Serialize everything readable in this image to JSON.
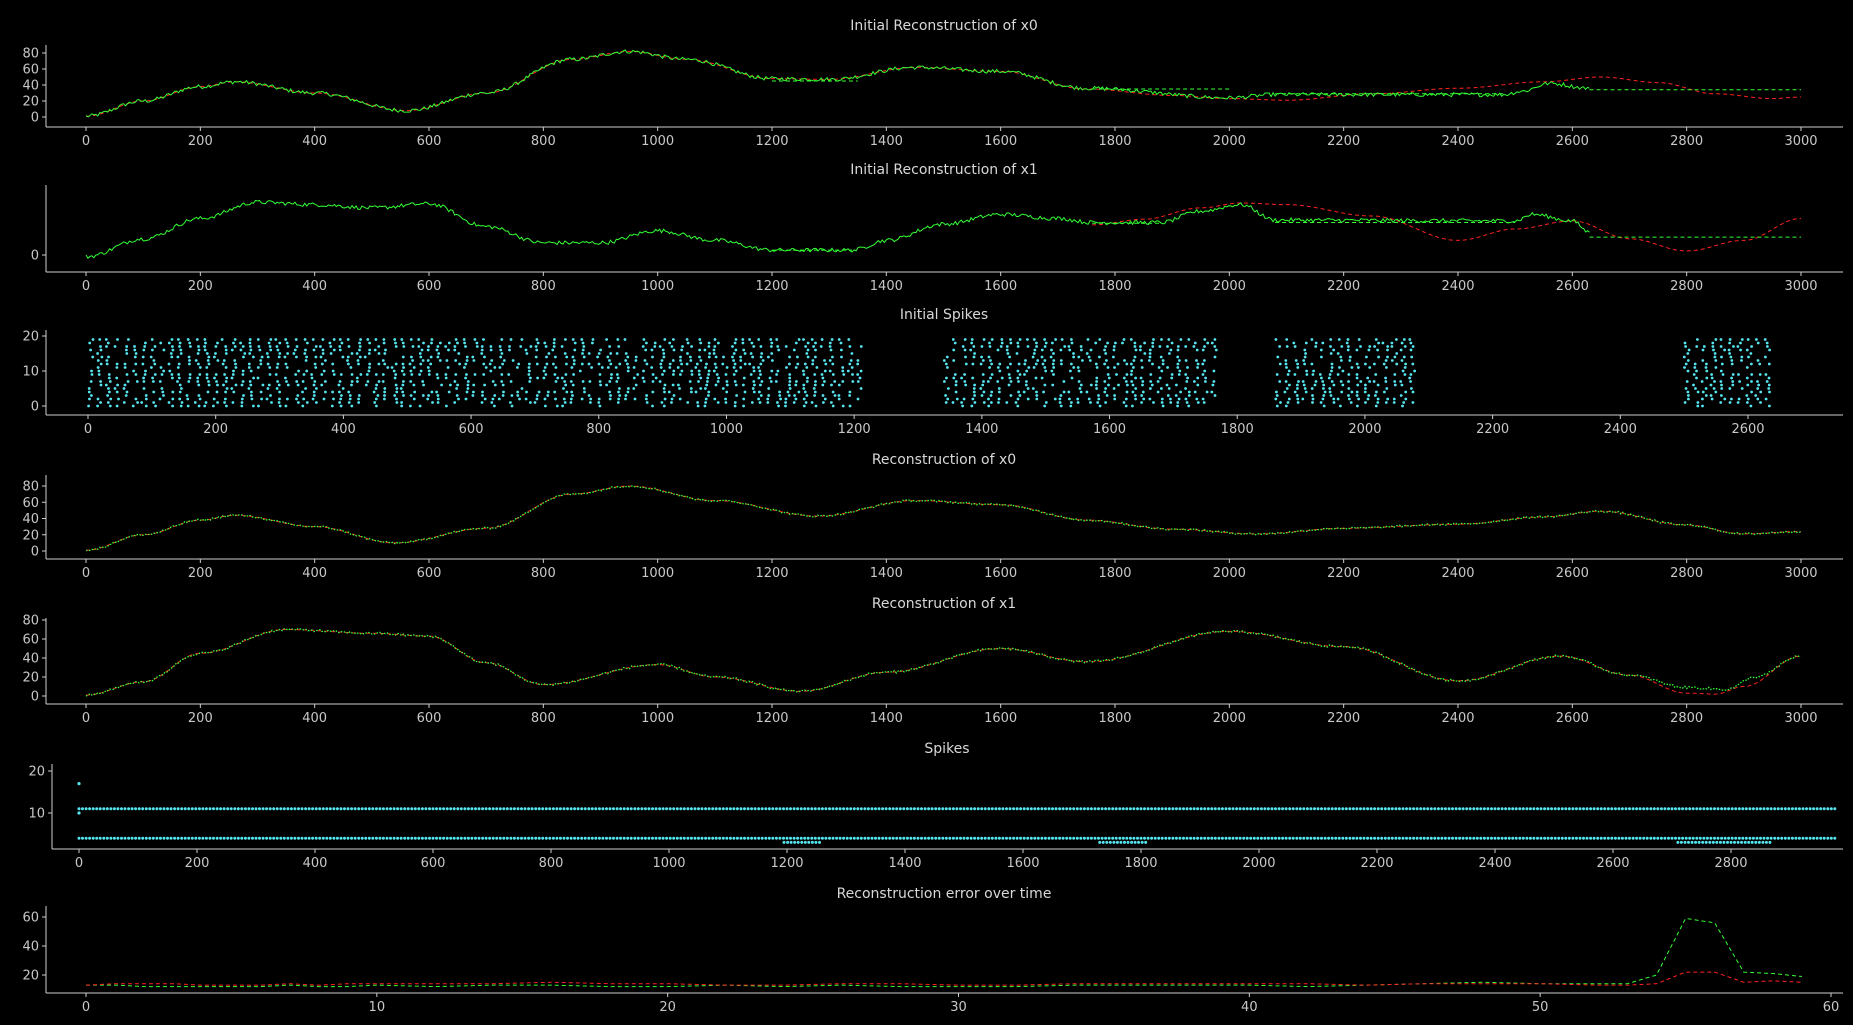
{
  "colors": {
    "background": "#000000",
    "reconstruction": "#33ff33",
    "original": "#ff2222",
    "spikes": "#55e6f0",
    "axis": "#cfcfcf",
    "text": "#d8d8d8"
  },
  "chart_data": [
    {
      "id": "p1",
      "type": "line",
      "title": "Initial Reconstruction of x0",
      "xlim": [
        0,
        3000
      ],
      "ylim": [
        -10,
        90
      ],
      "xticks": [
        0,
        200,
        400,
        600,
        800,
        1000,
        1200,
        1400,
        1600,
        1800,
        2000,
        2200,
        2400,
        2600,
        2800,
        3000
      ],
      "yticks": [
        0,
        20,
        40,
        60,
        80
      ],
      "series": [
        {
          "role": "original",
          "style": "dashed",
          "x": [
            0,
            100,
            200,
            260,
            400,
            560,
            700,
            850,
            950,
            1050,
            1200,
            1300,
            1450,
            1600,
            1750,
            1900,
            2000,
            2100,
            2250,
            2400,
            2550,
            2650,
            2750,
            2850,
            2950,
            3000
          ],
          "y": [
            1,
            20,
            38,
            44,
            30,
            8,
            30,
            72,
            82,
            72,
            48,
            47,
            62,
            57,
            35,
            27,
            23,
            21,
            29,
            36,
            44,
            50,
            43,
            29,
            23,
            25
          ]
        },
        {
          "role": "reconstruction",
          "style": "noisy",
          "x": [
            0,
            100,
            200,
            260,
            400,
            560,
            700,
            850,
            950,
            1050,
            1200,
            1300,
            1450,
            1600,
            1750,
            2000,
            2080,
            2480,
            2510,
            2560,
            2630
          ],
          "y": [
            1,
            20,
            38,
            44,
            30,
            8,
            30,
            72,
            82,
            72,
            48,
            47,
            62,
            57,
            36,
            24,
            28,
            28,
            32,
            42,
            36
          ]
        },
        {
          "role": "reconstruction",
          "style": "dashed",
          "x": [
            1200,
            1350
          ],
          "y": [
            45,
            45
          ]
        },
        {
          "role": "reconstruction",
          "style": "dashed",
          "x": [
            1760,
            2000
          ],
          "y": [
            35,
            35
          ]
        },
        {
          "role": "reconstruction",
          "style": "dashed",
          "x": [
            2080,
            2480
          ],
          "y": [
            29,
            29
          ]
        },
        {
          "role": "reconstruction",
          "style": "dashed",
          "x": [
            2630,
            3000
          ],
          "y": [
            34,
            34
          ]
        }
      ]
    },
    {
      "id": "p2",
      "type": "line",
      "title": "Initial Reconstruction of x1",
      "xlim": [
        0,
        3000
      ],
      "ylim": [
        -15,
        95
      ],
      "xticks": [
        0,
        200,
        400,
        600,
        800,
        1000,
        1200,
        1400,
        1600,
        1800,
        2000,
        2200,
        2400,
        2600,
        2800,
        3000
      ],
      "yticks": [
        0
      ],
      "series": [
        {
          "role": "original",
          "style": "dashed",
          "x": [
            1760,
            1850,
            1950,
            2020,
            2100,
            2250,
            2400,
            2500,
            2600,
            2700,
            2800,
            2900,
            3000
          ],
          "y": [
            37,
            44,
            58,
            64,
            62,
            48,
            18,
            32,
            42,
            20,
            5,
            18,
            45
          ]
        },
        {
          "role": "reconstruction",
          "style": "noisy",
          "x": [
            0,
            100,
            200,
            300,
            400,
            500,
            600,
            700,
            800,
            900,
            1000,
            1100,
            1200,
            1340,
            1400,
            1500,
            1600,
            1700,
            1760,
            1880,
            1950,
            2020,
            2080,
            2500,
            2530,
            2600,
            2630
          ],
          "y": [
            -2,
            20,
            45,
            65,
            62,
            58,
            63,
            35,
            15,
            15,
            30,
            18,
            6,
            6,
            18,
            38,
            50,
            45,
            40,
            40,
            54,
            62,
            43,
            42,
            50,
            42,
            28
          ]
        },
        {
          "role": "reconstruction",
          "style": "dashed",
          "x": [
            1200,
            1340
          ],
          "y": [
            6,
            6
          ]
        },
        {
          "role": "reconstruction",
          "style": "dashed",
          "x": [
            1760,
            1880
          ],
          "y": [
            39,
            39
          ]
        },
        {
          "role": "reconstruction",
          "style": "dashed",
          "x": [
            2080,
            2500
          ],
          "y": [
            40,
            40
          ]
        },
        {
          "role": "reconstruction",
          "style": "dashed",
          "x": [
            2630,
            3000
          ],
          "y": [
            22,
            22
          ]
        }
      ]
    },
    {
      "id": "p3",
      "type": "scatter",
      "title": "Initial Spikes",
      "xlim": [
        -55,
        2700
      ],
      "ylim": [
        -5,
        22
      ],
      "xticks": [
        0,
        200,
        400,
        600,
        800,
        1000,
        1200,
        1400,
        1600,
        1800,
        2000,
        2200,
        2400,
        2600
      ],
      "yticks": [
        0,
        10,
        20
      ],
      "rows": [
        0,
        1,
        2,
        3,
        4,
        5,
        6,
        7,
        8,
        9,
        10,
        11,
        12,
        13,
        14,
        15,
        16,
        17,
        18,
        19
      ],
      "segments": [
        [
          0,
          1210
        ],
        [
          1340,
          1760
        ],
        [
          1860,
          2080
        ],
        [
          2500,
          2630
        ]
      ]
    },
    {
      "id": "p4",
      "type": "line",
      "title": "Reconstruction of x0",
      "xlim": [
        0,
        3000
      ],
      "ylim": [
        -10,
        90
      ],
      "xticks": [
        0,
        200,
        400,
        600,
        800,
        1000,
        1200,
        1400,
        1600,
        1800,
        2000,
        2200,
        2400,
        2600,
        2800,
        3000
      ],
      "yticks": [
        0,
        20,
        40,
        60,
        80
      ],
      "series": [
        {
          "role": "original",
          "style": "dashed",
          "x": [
            0,
            100,
            200,
            260,
            400,
            540,
            700,
            850,
            950,
            1100,
            1280,
            1450,
            1600,
            1750,
            1900,
            2050,
            2200,
            2400,
            2550,
            2650,
            2800,
            2900,
            3000
          ],
          "y": [
            1,
            20,
            38,
            44,
            30,
            10,
            28,
            70,
            80,
            62,
            43,
            62,
            57,
            38,
            27,
            21,
            28,
            33,
            42,
            49,
            32,
            21,
            24
          ]
        },
        {
          "role": "reconstruction",
          "style": "dotted",
          "x": [
            0,
            100,
            200,
            260,
            400,
            540,
            700,
            850,
            950,
            1100,
            1280,
            1450,
            1600,
            1750,
            1900,
            2050,
            2200,
            2400,
            2550,
            2650,
            2800,
            2900,
            3000
          ],
          "y": [
            1,
            20,
            38,
            44,
            30,
            10,
            28,
            70,
            80,
            62,
            43,
            62,
            57,
            38,
            27,
            21,
            28,
            33,
            42,
            49,
            32,
            21,
            24
          ]
        }
      ]
    },
    {
      "id": "p5",
      "type": "line",
      "title": "Reconstruction of x1",
      "xlim": [
        0,
        3000
      ],
      "ylim": [
        -10,
        90
      ],
      "xticks": [
        0,
        200,
        400,
        600,
        800,
        1000,
        1200,
        1400,
        1600,
        1800,
        2000,
        2200,
        2400,
        2600,
        2800,
        3000
      ],
      "yticks": [
        0,
        20,
        40,
        60,
        80
      ],
      "series": [
        {
          "role": "original",
          "style": "dashed",
          "x": [
            0,
            100,
            200,
            350,
            500,
            600,
            700,
            800,
            1000,
            1100,
            1250,
            1400,
            1600,
            1750,
            2000,
            2200,
            2400,
            2580,
            2700,
            2800,
            2850,
            2900,
            3000
          ],
          "y": [
            1,
            15,
            45,
            70,
            66,
            63,
            35,
            12,
            33,
            20,
            5,
            25,
            50,
            36,
            68,
            52,
            16,
            42,
            22,
            3,
            2,
            10,
            42
          ]
        },
        {
          "role": "reconstruction",
          "style": "dotted",
          "x": [
            0,
            100,
            200,
            350,
            500,
            600,
            700,
            800,
            1000,
            1100,
            1250,
            1400,
            1600,
            1750,
            2000,
            2200,
            2400,
            2580,
            2700,
            2800,
            2870,
            2920,
            3000
          ],
          "y": [
            1,
            15,
            45,
            70,
            66,
            63,
            35,
            12,
            33,
            20,
            5,
            25,
            50,
            36,
            68,
            52,
            16,
            42,
            22,
            9,
            7,
            20,
            42
          ]
        }
      ]
    },
    {
      "id": "p6",
      "type": "scatter",
      "title": "Spikes",
      "xlim": [
        -45,
        2980
      ],
      "ylim": [
        0,
        22
      ],
      "xticks": [
        0,
        200,
        400,
        600,
        800,
        1000,
        1200,
        1400,
        1600,
        1800,
        2000,
        2200,
        2400,
        2600,
        2800
      ],
      "yticks": [
        10,
        20
      ],
      "rows": [
        {
          "y": 11,
          "x": [
            0,
            2980
          ]
        },
        {
          "y": 4,
          "x": [
            0,
            2980
          ]
        },
        {
          "y": 3,
          "x": [
            1195,
            1255
          ]
        },
        {
          "y": 3,
          "x": [
            1730,
            1810
          ]
        },
        {
          "y": 3,
          "x": [
            2710,
            2870
          ]
        }
      ],
      "extra_points": [
        {
          "x": 0,
          "y": 17
        },
        {
          "x": 0,
          "y": 10
        }
      ]
    },
    {
      "id": "p7",
      "type": "line",
      "title": "Reconstruction error over time",
      "xlim": [
        -1.5,
        60
      ],
      "ylim": [
        0,
        65
      ],
      "xticks": [
        0,
        10,
        20,
        30,
        40,
        50,
        60
      ],
      "yticks": [
        20,
        40,
        60
      ],
      "series": [
        {
          "role": "reconstruction",
          "style": "dashed",
          "x": [
            0,
            1,
            2,
            3,
            4,
            5,
            6,
            7,
            8,
            9,
            10,
            12,
            14,
            16,
            18,
            20,
            22,
            24,
            26,
            28,
            30,
            32,
            34,
            36,
            38,
            40,
            42,
            44,
            46,
            48,
            50,
            52,
            53,
            54,
            55,
            56,
            57,
            58,
            59
          ],
          "y": [
            13,
            13,
            12,
            12,
            12,
            12,
            12,
            13,
            12,
            12,
            13,
            12,
            13,
            13,
            12,
            12,
            13,
            12,
            13,
            12,
            12,
            12,
            13,
            13,
            13,
            13,
            12,
            13,
            14,
            15,
            14,
            14,
            14,
            20,
            59,
            56,
            22,
            21,
            19
          ]
        },
        {
          "role": "original",
          "style": "dashed",
          "x": [
            0,
            1,
            2,
            3,
            4,
            5,
            6,
            7,
            8,
            9,
            10,
            12,
            14,
            16,
            18,
            20,
            22,
            24,
            26,
            28,
            30,
            32,
            34,
            36,
            38,
            40,
            42,
            44,
            46,
            48,
            50,
            52,
            53,
            54,
            55,
            56,
            57,
            58,
            59
          ],
          "y": [
            13,
            14,
            14,
            14,
            13,
            13,
            13,
            14,
            13,
            14,
            14,
            14,
            14,
            15,
            14,
            14,
            13,
            13,
            14,
            14,
            13,
            13,
            14,
            14,
            14,
            14,
            14,
            13,
            14,
            14,
            14,
            13,
            13,
            14,
            22,
            22,
            15,
            16,
            15
          ]
        }
      ]
    }
  ]
}
